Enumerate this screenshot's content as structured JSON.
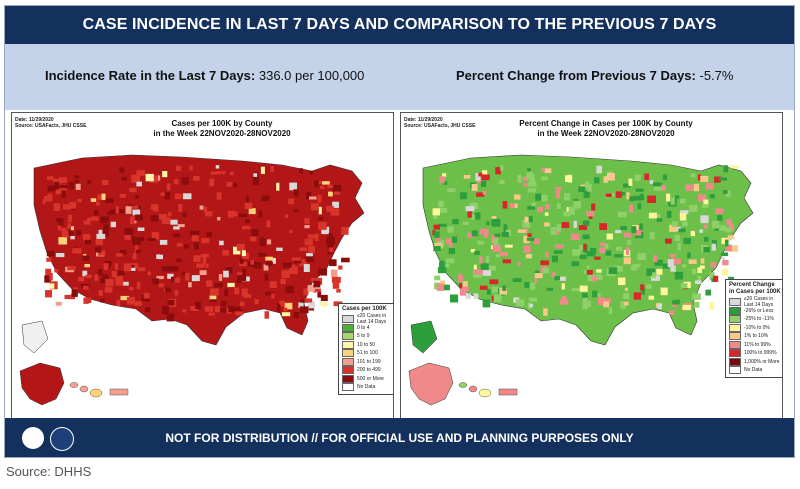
{
  "header": {
    "title": "CASE INCIDENCE IN LAST 7 DAYS AND COMPARISON TO THE PREVIOUS 7 DAYS"
  },
  "stats": {
    "left_label": "Incidence Rate in the Last 7 Days:",
    "left_value": "336.0 per 100,000",
    "right_label": "Percent Change from Previous 7 Days:",
    "right_value": "-5.7%"
  },
  "maps": [
    {
      "date": "Date: 11/29/2020",
      "source": "Source: USAFacts, JHU CSSE",
      "title_line1": "Cases per 100K by County",
      "title_line2": "in the Week 22NOV2020-28NOV2020",
      "legend_title": "Cases per 100K",
      "legend": [
        {
          "label": "≤20 Cases in Last 14 Days",
          "color": "#d9d9d9"
        },
        {
          "label": "0 to 4",
          "color": "#4caf38"
        },
        {
          "label": "5 to 9",
          "color": "#a6d96a"
        },
        {
          "label": "10 to 50",
          "color": "#fff7a8"
        },
        {
          "label": "51 to 100",
          "color": "#fdd27a"
        },
        {
          "label": "101 to 199",
          "color": "#f4a08c"
        },
        {
          "label": "200 to 499",
          "color": "#d9342b"
        },
        {
          "label": "500 or More",
          "color": "#8b0c0c"
        },
        {
          "label": "No Data",
          "color": "#ffffff"
        }
      ]
    },
    {
      "date": "Date: 11/29/2020",
      "source": "Source: USAFacts, JHU CSSE",
      "title_line1": "Percent Change in Cases per 100K by County",
      "title_line2": "in the Week 22NOV2020-28NOV2020",
      "legend_title": "Percent Change in Cases per 100K",
      "legend": [
        {
          "label": "≤20 Cases in Last 14 Days",
          "color": "#d9d9d9"
        },
        {
          "label": "-26% or Less",
          "color": "#2e9e3c"
        },
        {
          "label": "-25% to -11%",
          "color": "#8fd06a"
        },
        {
          "label": "-10% to 0%",
          "color": "#fff59a"
        },
        {
          "label": "1% to 10%",
          "color": "#fcc78a"
        },
        {
          "label": "11% to 99%",
          "color": "#f08a8a"
        },
        {
          "label": "100% to 999%",
          "color": "#d62828"
        },
        {
          "label": "1,000% or More",
          "color": "#7a0a0a"
        },
        {
          "label": "No Data",
          "color": "#ffffff"
        }
      ]
    }
  ],
  "footer": {
    "text": "NOT FOR DISTRIBUTION // FOR OFFICIAL USE AND PLANNING PURPOSES ONLY"
  },
  "source_note": "Source: DHHS",
  "colors": {
    "navy": "#13315c",
    "stats_bg": "#c5d3ea"
  }
}
